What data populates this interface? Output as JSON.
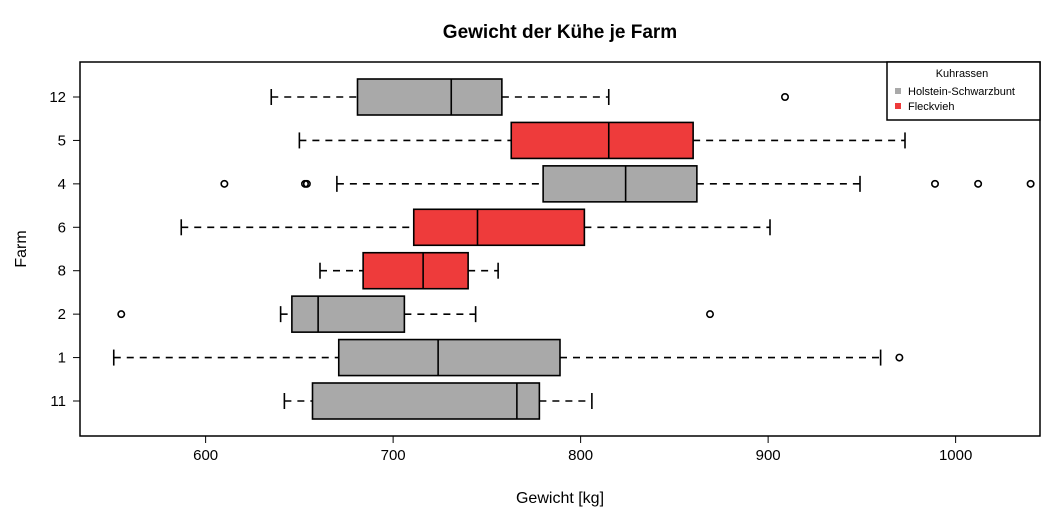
{
  "chart_data": {
    "type": "boxplot",
    "orientation": "horizontal",
    "title": "Gewicht der Kühe je Farm",
    "xlabel": "Gewicht [kg]",
    "ylabel": "Farm",
    "xlim": [
      533,
      1045
    ],
    "xticks": [
      600,
      700,
      800,
      900,
      1000
    ],
    "categories": [
      "11",
      "1",
      "2",
      "8",
      "6",
      "4",
      "5",
      "12"
    ],
    "boxes": [
      {
        "farm": "11",
        "breed": "Holstein-Schwarzbunt",
        "min": 642,
        "q1": 657,
        "median": 766,
        "q3": 778,
        "max": 806,
        "outliers": []
      },
      {
        "farm": "1",
        "breed": "Holstein-Schwarzbunt",
        "min": 551,
        "q1": 671,
        "median": 724,
        "q3": 789,
        "max": 960,
        "outliers": [
          970
        ]
      },
      {
        "farm": "2",
        "breed": "Holstein-Schwarzbunt",
        "min": 640,
        "q1": 646,
        "median": 660,
        "q3": 706,
        "max": 744,
        "outliers": [
          555,
          869
        ]
      },
      {
        "farm": "8",
        "breed": "Fleckvieh",
        "min": 661,
        "q1": 684,
        "median": 716,
        "q3": 740,
        "max": 756,
        "outliers": []
      },
      {
        "farm": "6",
        "breed": "Fleckvieh",
        "min": 587,
        "q1": 711,
        "median": 745,
        "q3": 802,
        "max": 901,
        "outliers": []
      },
      {
        "farm": "4",
        "breed": "Holstein-Schwarzbunt",
        "min": 670,
        "q1": 780,
        "median": 824,
        "q3": 862,
        "max": 949,
        "outliers": [
          610,
          653,
          654,
          989,
          1012,
          1040
        ]
      },
      {
        "farm": "5",
        "breed": "Fleckvieh",
        "min": 650,
        "q1": 763,
        "median": 815,
        "q3": 860,
        "max": 973,
        "outliers": []
      },
      {
        "farm": "12",
        "breed": "Holstein-Schwarzbunt",
        "min": 635,
        "q1": 681,
        "median": 731,
        "q3": 758,
        "max": 815,
        "outliers": [
          909
        ]
      }
    ],
    "legend": {
      "title": "Kuhrassen",
      "position": "top-right",
      "entries": [
        {
          "label": "Holstein-Schwarzbunt",
          "color": "#a9a9a9"
        },
        {
          "label": "Fleckvieh",
          "color": "#ee3b3b"
        }
      ]
    },
    "grid": false
  }
}
